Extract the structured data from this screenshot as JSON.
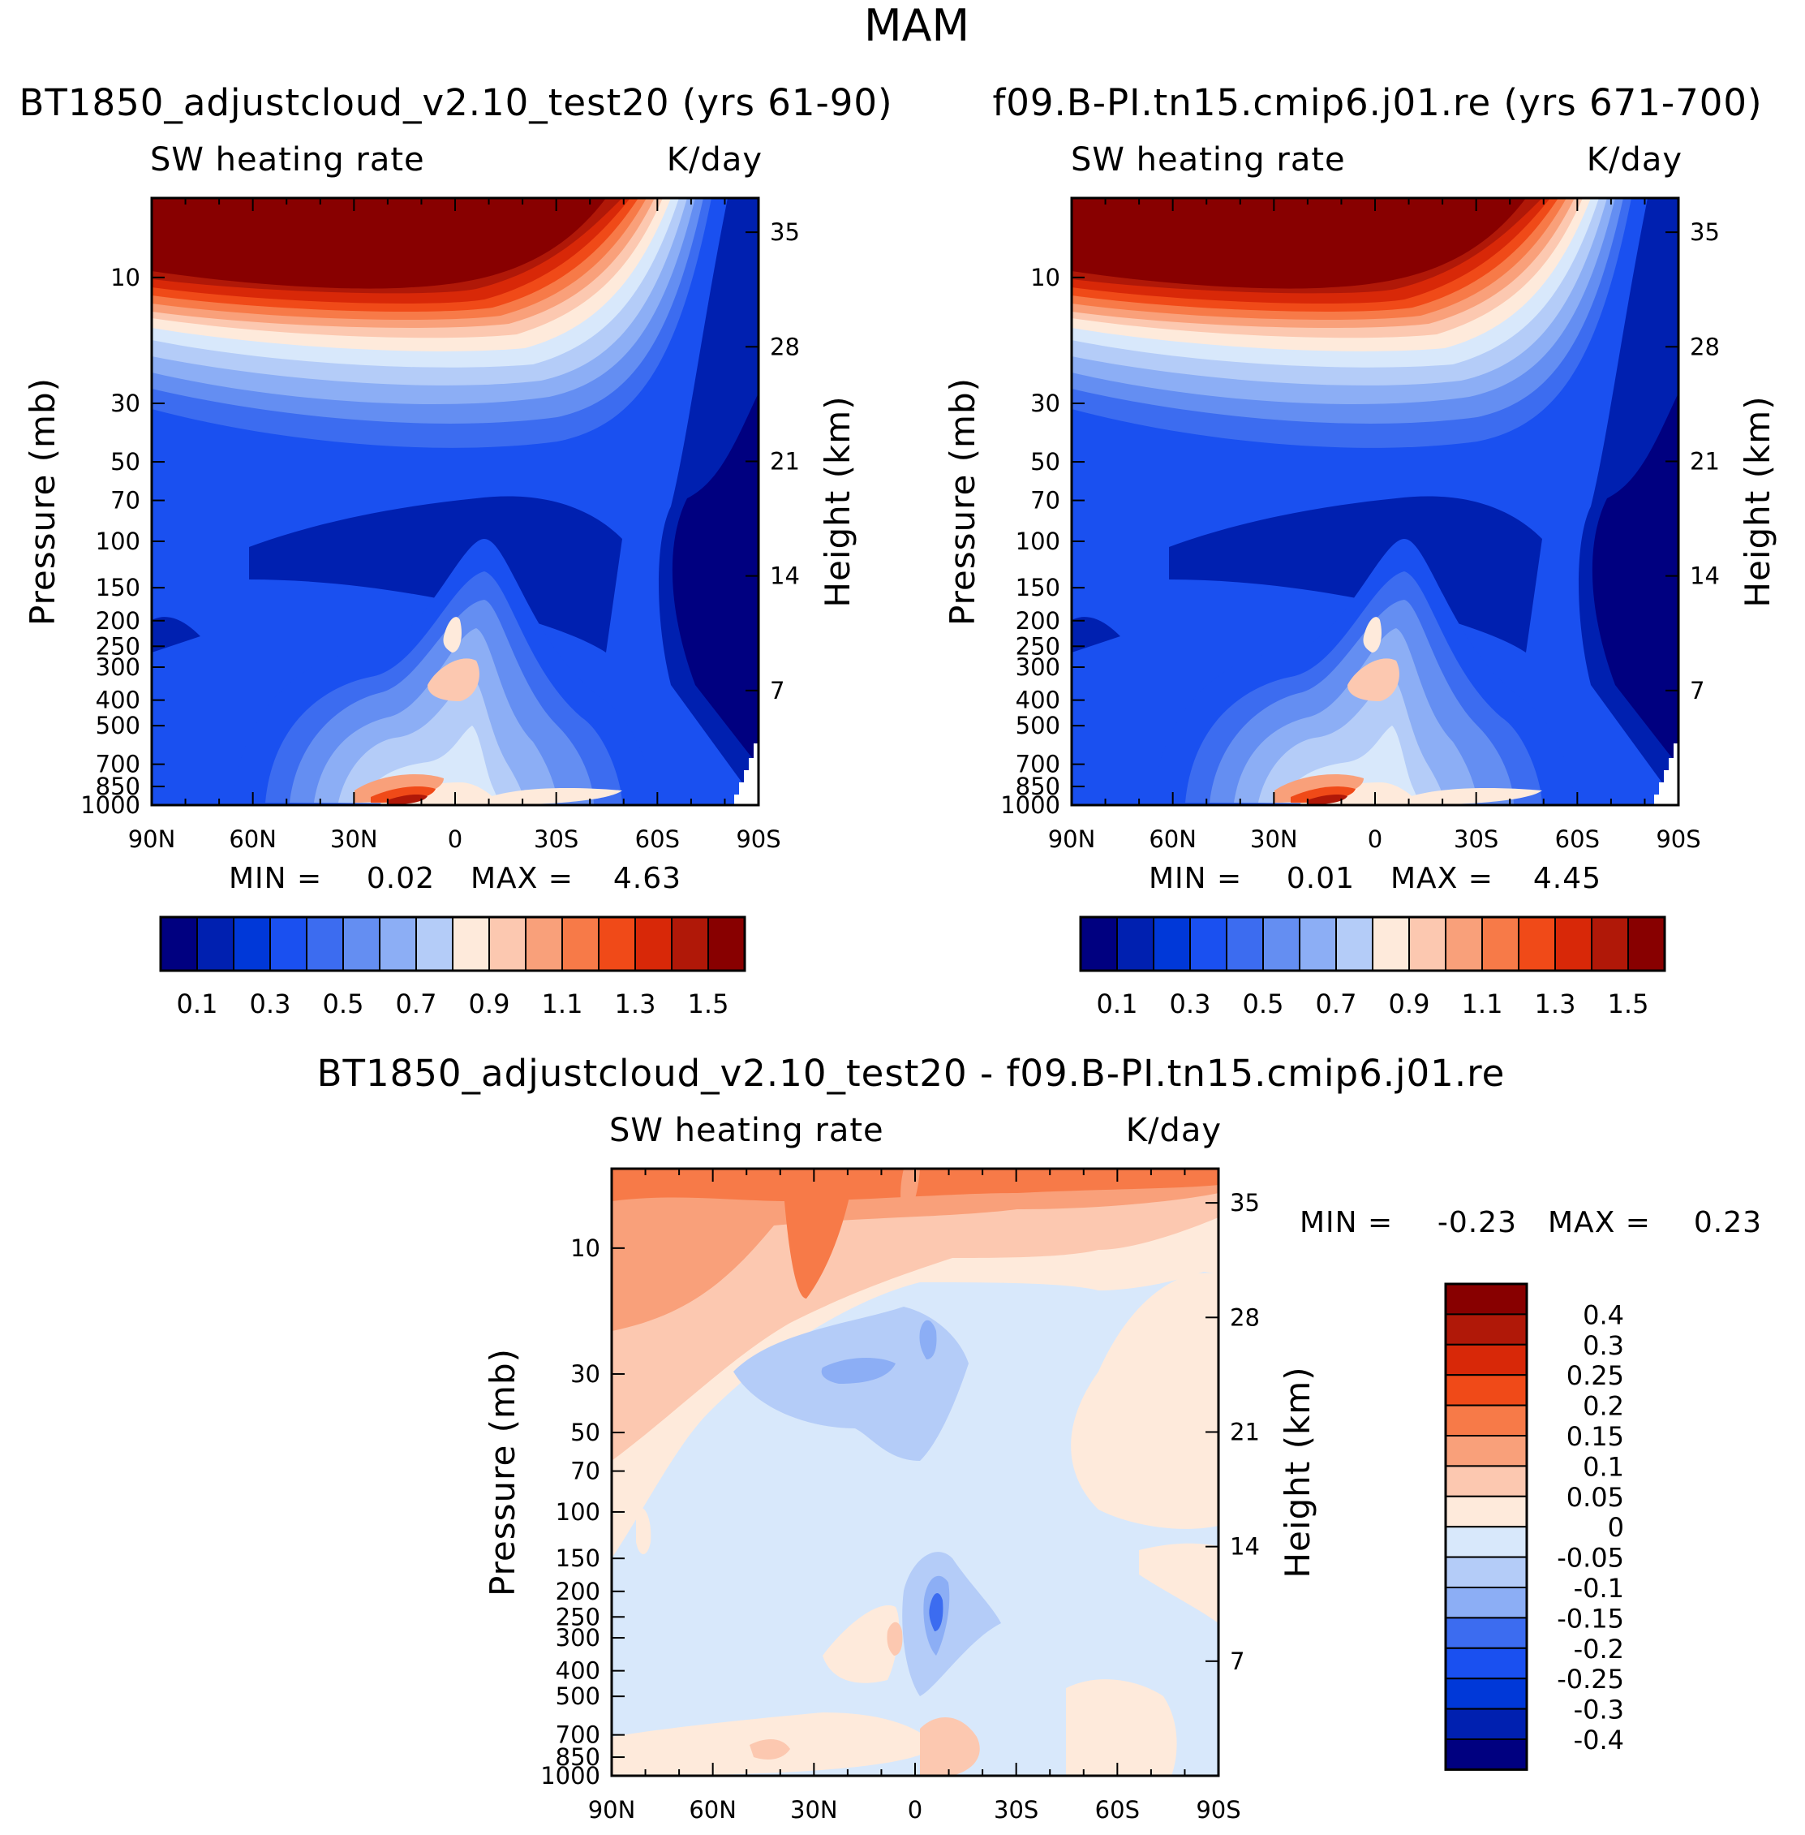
{
  "figure": {
    "season": "MAM",
    "subtitle_left": "SW heating rate",
    "subtitle_right": "K/day",
    "y_label": "Pressure (mb)",
    "y2_label": "Height (km)",
    "pressure_ticks": [
      "10",
      "30",
      "50",
      "70",
      "100",
      "150",
      "200",
      "250",
      "300",
      "400",
      "500",
      "700",
      "850",
      "1000"
    ],
    "height_ticks": [
      "35",
      "28",
      "21",
      "14",
      "7"
    ],
    "lat_ticks": [
      "90N",
      "60N",
      "30N",
      "0",
      "30S",
      "60S",
      "90S"
    ]
  },
  "chart_data": [
    {
      "type": "heatmap",
      "title": "BT1850_adjustcloud_v2.10_test20 (yrs 61-90)",
      "subtitle": "SW heating rate",
      "units": "K/day",
      "xlabel": "",
      "ylabel": "Pressure (mb)",
      "y2label": "Height (km)",
      "xlim": [
        "90N",
        "90S"
      ],
      "ylim": [
        1000,
        5
      ],
      "min_label": "MIN =",
      "min_value": "0.02",
      "max_label": "MAX =",
      "max_value": "4.63",
      "colorbar_levels": [
        0.1,
        0.2,
        0.3,
        0.4,
        0.5,
        0.6,
        0.7,
        0.8,
        0.9,
        1.0,
        1.1,
        1.2,
        1.3,
        1.4,
        1.5
      ],
      "colorbar_labels": [
        "0.1",
        "0.3",
        "0.5",
        "0.7",
        "0.9",
        "1.1",
        "1.3",
        "1.5"
      ]
    },
    {
      "type": "heatmap",
      "title": "f09.B-PI.tn15.cmip6.j01.re (yrs 671-700)",
      "subtitle": "SW heating rate",
      "units": "K/day",
      "xlabel": "",
      "ylabel": "Pressure (mb)",
      "y2label": "Height (km)",
      "xlim": [
        "90N",
        "90S"
      ],
      "ylim": [
        1000,
        5
      ],
      "min_label": "MIN =",
      "min_value": "0.01",
      "max_label": "MAX =",
      "max_value": "4.45",
      "colorbar_levels": [
        0.1,
        0.2,
        0.3,
        0.4,
        0.5,
        0.6,
        0.7,
        0.8,
        0.9,
        1.0,
        1.1,
        1.2,
        1.3,
        1.4,
        1.5
      ],
      "colorbar_labels": [
        "0.1",
        "0.3",
        "0.5",
        "0.7",
        "0.9",
        "1.1",
        "1.3",
        "1.5"
      ]
    },
    {
      "type": "heatmap",
      "title": "BT1850_adjustcloud_v2.10_test20 - f09.B-PI.tn15.cmip6.j01.re",
      "subtitle": "SW heating rate",
      "units": "K/day",
      "xlabel": "",
      "ylabel": "Pressure (mb)",
      "y2label": "Height (km)",
      "xlim": [
        "90N",
        "90S"
      ],
      "ylim": [
        1000,
        5
      ],
      "min_label": "MIN =",
      "min_value": "-0.23",
      "max_label": "MAX =",
      "max_value": "0.23",
      "colorbar_levels": [
        -0.4,
        -0.3,
        -0.25,
        -0.2,
        -0.15,
        -0.1,
        -0.05,
        0,
        0.05,
        0.1,
        0.15,
        0.2,
        0.25,
        0.3,
        0.4
      ],
      "colorbar_labels": [
        "0.4",
        "0.3",
        "0.25",
        "0.2",
        "0.15",
        "0.1",
        "0.05",
        "0",
        "-0.05",
        "-0.1",
        "-0.15",
        "-0.2",
        "-0.25",
        "-0.3",
        "-0.4"
      ]
    }
  ],
  "palette": {
    "panels": [
      "#000080",
      "#0020b0",
      "#0038d8",
      "#1a50f0",
      "#3c6cf0",
      "#648ef2",
      "#8caef5",
      "#b4ccf8",
      "#d8e8fb",
      "#feeadb",
      "#fcc8b0",
      "#f9a07a",
      "#f77a48",
      "#f04a18",
      "#d82808",
      "#b01808",
      "#880000"
    ],
    "diff": [
      "#000080",
      "#0020b0",
      "#0038d8",
      "#1a50f0",
      "#3c6cf0",
      "#8caef5",
      "#b4ccf8",
      "#d8e8fb",
      "#feeadb",
      "#fcc8b0",
      "#f9a07a",
      "#f77a48",
      "#f04a18",
      "#d82808",
      "#b01808",
      "#880000"
    ]
  }
}
